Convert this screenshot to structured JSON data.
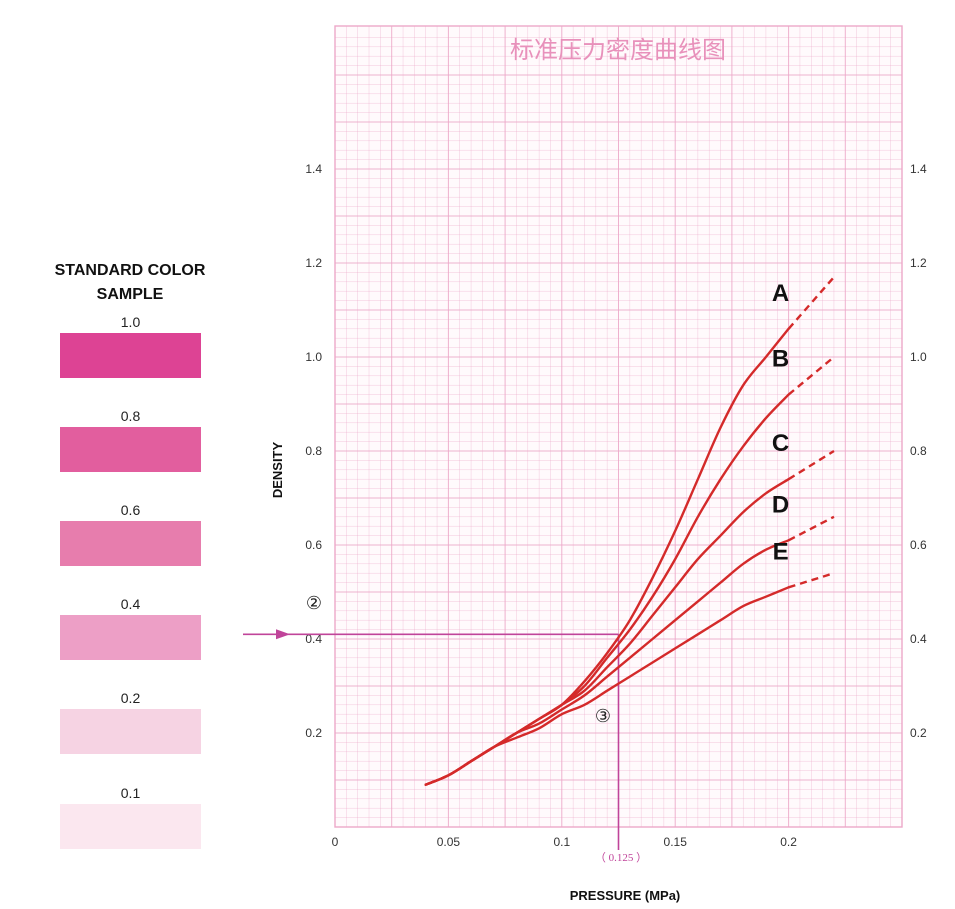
{
  "swatch_panel": {
    "title_line1": "STANDARD COLOR",
    "title_line2": "SAMPLE",
    "swatches": [
      {
        "label": "1.0",
        "color": "#dd4394"
      },
      {
        "label": "0.8",
        "color": "#e25e9e"
      },
      {
        "label": "0.6",
        "color": "#e77dad"
      },
      {
        "label": "0.4",
        "color": "#ed9fc6"
      },
      {
        "label": "0.2",
        "color": "#f6d3e3"
      },
      {
        "label": "0.1",
        "color": "#fbe7ef"
      }
    ]
  },
  "chart_data": {
    "type": "line",
    "title": "标准压力密度曲线图",
    "xlabel": "PRESSURE (MPa)",
    "ylabel": "DENSITY",
    "xlim": [
      0,
      0.245
    ],
    "ylim": [
      0,
      1.68
    ],
    "x_ticks": [
      "0",
      "0.05",
      "0.1",
      "0.15",
      "0.2"
    ],
    "x_tick_values": [
      0,
      0.05,
      0.1,
      0.15,
      0.2
    ],
    "y_ticks": [
      "0.2",
      "0.4",
      "0.6",
      "0.8",
      "1.0",
      "1.2",
      "1.4"
    ],
    "y_tick_values": [
      0.2,
      0.4,
      0.6,
      0.8,
      1.0,
      1.2,
      1.4
    ],
    "grid": true,
    "grid_color": "#eca9c9",
    "curve_color": "#d42a2a",
    "guide_color": "#c0449a",
    "series": [
      {
        "name": "A",
        "x": [
          0.04,
          0.05,
          0.06,
          0.07,
          0.08,
          0.09,
          0.1,
          0.11,
          0.12,
          0.13,
          0.14,
          0.15,
          0.16,
          0.17,
          0.18,
          0.19,
          0.2
        ],
        "y": [
          0.09,
          0.11,
          0.14,
          0.17,
          0.2,
          0.23,
          0.26,
          0.31,
          0.37,
          0.44,
          0.53,
          0.63,
          0.74,
          0.85,
          0.94,
          1.0,
          1.06
        ],
        "extension_x": [
          0.2,
          0.22
        ],
        "extension_y": [
          1.06,
          1.17
        ]
      },
      {
        "name": "B",
        "x": [
          0.04,
          0.05,
          0.06,
          0.07,
          0.08,
          0.09,
          0.1,
          0.11,
          0.12,
          0.13,
          0.14,
          0.15,
          0.16,
          0.17,
          0.18,
          0.19,
          0.2
        ],
        "y": [
          0.09,
          0.11,
          0.14,
          0.17,
          0.2,
          0.23,
          0.26,
          0.3,
          0.36,
          0.42,
          0.49,
          0.57,
          0.66,
          0.74,
          0.81,
          0.87,
          0.92
        ],
        "extension_x": [
          0.2,
          0.22
        ],
        "extension_y": [
          0.92,
          1.0
        ]
      },
      {
        "name": "C",
        "x": [
          0.04,
          0.05,
          0.06,
          0.07,
          0.08,
          0.09,
          0.1,
          0.11,
          0.12,
          0.13,
          0.14,
          0.15,
          0.16,
          0.17,
          0.18,
          0.19,
          0.2
        ],
        "y": [
          0.09,
          0.11,
          0.14,
          0.17,
          0.2,
          0.23,
          0.26,
          0.29,
          0.34,
          0.39,
          0.45,
          0.51,
          0.57,
          0.62,
          0.67,
          0.71,
          0.74
        ],
        "extension_x": [
          0.2,
          0.22
        ],
        "extension_y": [
          0.74,
          0.8
        ]
      },
      {
        "name": "D",
        "x": [
          0.04,
          0.05,
          0.06,
          0.07,
          0.08,
          0.09,
          0.1,
          0.11,
          0.12,
          0.13,
          0.14,
          0.15,
          0.16,
          0.17,
          0.18,
          0.19,
          0.2
        ],
        "y": [
          0.09,
          0.11,
          0.14,
          0.17,
          0.2,
          0.22,
          0.25,
          0.28,
          0.32,
          0.36,
          0.4,
          0.44,
          0.48,
          0.52,
          0.56,
          0.59,
          0.61
        ],
        "extension_x": [
          0.2,
          0.22
        ],
        "extension_y": [
          0.61,
          0.66
        ]
      },
      {
        "name": "E",
        "x": [
          0.04,
          0.05,
          0.06,
          0.07,
          0.08,
          0.09,
          0.1,
          0.11,
          0.12,
          0.13,
          0.14,
          0.15,
          0.16,
          0.17,
          0.18,
          0.19,
          0.2
        ],
        "y": [
          0.09,
          0.11,
          0.14,
          0.17,
          0.19,
          0.21,
          0.24,
          0.26,
          0.29,
          0.32,
          0.35,
          0.38,
          0.41,
          0.44,
          0.47,
          0.49,
          0.51
        ],
        "extension_x": [
          0.2,
          0.22
        ],
        "extension_y": [
          0.51,
          0.54
        ]
      }
    ],
    "annotations": {
      "marker_2": "②",
      "marker_3": "③",
      "x_readout": "（ 0.125 ）",
      "guide_x": 0.125,
      "guide_y": 0.41
    }
  }
}
